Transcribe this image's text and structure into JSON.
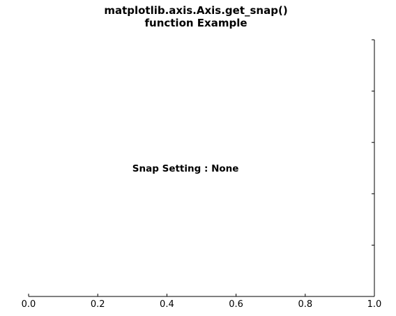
{
  "chart_data": {
    "type": "line",
    "title_lines": [
      "matplotlib.axis.Axis.get_snap()",
      "function Example"
    ],
    "xlabel": "",
    "ylabel": "",
    "xlim": [
      0.0,
      1.0
    ],
    "x_ticks": [
      0.0,
      0.2,
      0.4,
      0.6,
      0.8,
      1.0
    ],
    "x_tick_labels": [
      "0.0",
      "0.2",
      "0.4",
      "0.6",
      "0.8",
      "1.0"
    ],
    "y_ticks": [
      0.0,
      0.2,
      0.4,
      0.6,
      0.8,
      1.0
    ],
    "y_tick_labels_visible": false,
    "visible_spines": [
      "bottom",
      "right"
    ],
    "series": [],
    "annotation": {
      "text": "Snap Setting : None",
      "x": 0.3,
      "y": 0.5
    },
    "grid": false,
    "legend": "none"
  },
  "colors": {
    "axis": "#000000",
    "background": "#ffffff"
  }
}
